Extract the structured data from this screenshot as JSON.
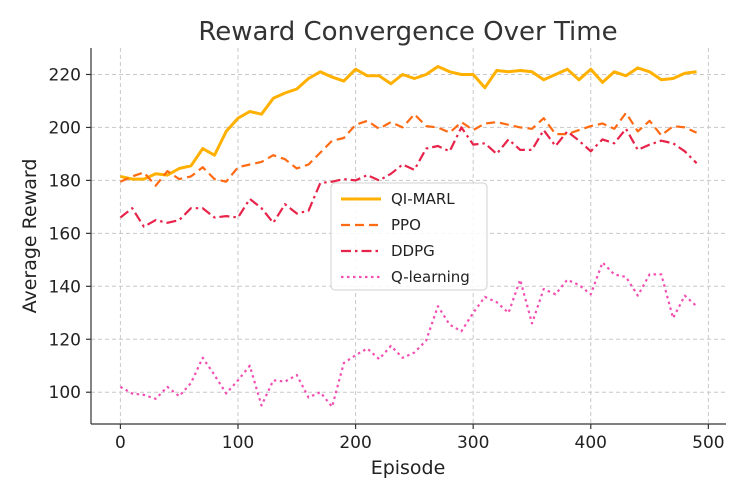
{
  "chart_data": {
    "type": "line",
    "title": "Reward Convergence Over Time",
    "xlabel": "Episode",
    "ylabel": "Average Reward",
    "xlim": [
      -25,
      515
    ],
    "ylim": [
      88,
      230
    ],
    "xticks": [
      0,
      100,
      200,
      300,
      400,
      500
    ],
    "yticks": [
      100,
      120,
      140,
      160,
      180,
      200,
      220
    ],
    "xtick_labels": [
      "0",
      "100",
      "200",
      "300",
      "400",
      "500"
    ],
    "ytick_labels": [
      "100",
      "120",
      "140",
      "160",
      "180",
      "200",
      "220"
    ],
    "grid": true,
    "legend_position": "center",
    "x": [
      0,
      10,
      20,
      30,
      40,
      50,
      60,
      70,
      80,
      90,
      100,
      110,
      120,
      130,
      140,
      150,
      160,
      170,
      180,
      190,
      200,
      210,
      220,
      230,
      240,
      250,
      260,
      270,
      280,
      290,
      300,
      310,
      320,
      330,
      340,
      350,
      360,
      370,
      380,
      390,
      400,
      410,
      420,
      430,
      440,
      450,
      460,
      470,
      480,
      490
    ],
    "series": [
      {
        "name": "QI-MARL",
        "color": "#FFB000",
        "style": "solid",
        "values": [
          181.5,
          180.5,
          180.5,
          182.5,
          182,
          184.5,
          185.5,
          192,
          189.5,
          198.5,
          203.5,
          206,
          205,
          211,
          213,
          214.5,
          218.5,
          221,
          219,
          217.5,
          222,
          219.5,
          219.5,
          216.5,
          220,
          218.5,
          220,
          223,
          221,
          220,
          220,
          215,
          221.5,
          221,
          221.5,
          221,
          218,
          220,
          222,
          218,
          222,
          217,
          221,
          219.5,
          222.5,
          221,
          218,
          218.5,
          220.5,
          221
        ]
      },
      {
        "name": "PPO",
        "color": "#FF6A13",
        "style": "dashed",
        "values": [
          179.5,
          181.5,
          183,
          178,
          183.5,
          180.5,
          181.5,
          185,
          180.5,
          179.5,
          185,
          186,
          187,
          189.5,
          188,
          184.5,
          186,
          190.5,
          195,
          196,
          201,
          202.5,
          199.5,
          202,
          200,
          205,
          200.5,
          200,
          198,
          202,
          199,
          201.5,
          202,
          201,
          200,
          199.5,
          203.5,
          197.5,
          197.5,
          199,
          200.5,
          201.5,
          199.5,
          205.5,
          198.5,
          202.5,
          197,
          200.5,
          200,
          198
        ]
      },
      {
        "name": "DDPG",
        "color": "#E8234A",
        "style": "dashdot",
        "values": [
          166,
          169.5,
          162.5,
          165,
          164,
          165,
          169.5,
          169.5,
          166,
          166.5,
          166,
          173,
          169.5,
          164,
          171,
          167.5,
          168.5,
          179,
          179.5,
          180.5,
          180,
          182,
          180,
          182.5,
          186,
          184,
          192,
          193,
          191,
          200,
          193.5,
          194,
          190,
          195.5,
          191.5,
          191.5,
          199,
          193,
          198.5,
          195,
          191,
          195.5,
          194,
          199.5,
          191.5,
          193.5,
          195,
          194,
          191,
          186.5
        ]
      },
      {
        "name": "Q-learning",
        "color": "#F24FB2",
        "style": "dotted",
        "values": [
          102,
          99.5,
          99,
          97.5,
          102,
          98.5,
          103.5,
          113,
          106.5,
          99.5,
          104.5,
          110,
          95,
          104.5,
          104,
          106.5,
          98,
          100,
          94.5,
          111,
          114,
          116.5,
          112.5,
          117.5,
          113,
          115,
          119.5,
          132.5,
          125.5,
          123,
          130,
          136,
          134,
          130,
          142.5,
          126,
          139,
          137,
          142.5,
          140.5,
          137,
          149,
          144.5,
          143.5,
          136.5,
          144.5,
          144.5,
          128,
          136.5,
          132.5
        ]
      }
    ]
  }
}
